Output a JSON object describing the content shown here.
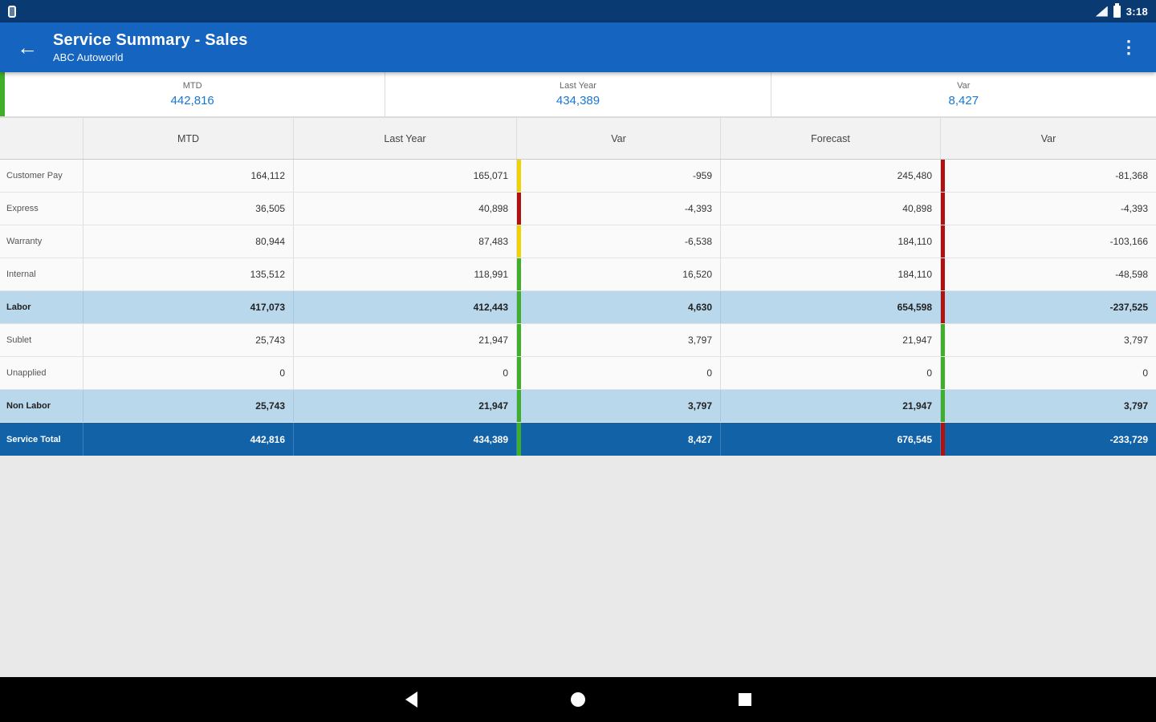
{
  "colors": {
    "app_bar_blue": "#1565c0",
    "status_bar_blue": "#0a3a72",
    "value_blue": "#1976d2",
    "positive_green": "#3fae2a",
    "warning_yellow": "#eed202",
    "negative_red": "#b01111",
    "subtotal_row_blue": "#b9d8ec",
    "total_row_blue": "#1262a8"
  },
  "status_bar": {
    "time": "3:18"
  },
  "app_bar": {
    "title": "Service Summary - Sales",
    "subtitle": "ABC Autoworld",
    "back_icon": "←",
    "overflow_icon": "⋮"
  },
  "summary": {
    "items": [
      {
        "label": "MTD",
        "value": "442,816"
      },
      {
        "label": "Last Year",
        "value": "434,389"
      },
      {
        "label": "Var",
        "value": "8,427"
      }
    ]
  },
  "table": {
    "columns": [
      "MTD",
      "Last Year",
      "Var",
      "Forecast",
      "Var"
    ],
    "rows": [
      {
        "label": "Customer Pay",
        "values": [
          "164,112",
          "165,071",
          "-959",
          "245,480",
          "-81,368"
        ],
        "var1_color": "yellow",
        "var2_color": "red",
        "style": "normal"
      },
      {
        "label": "Express",
        "values": [
          "36,505",
          "40,898",
          "-4,393",
          "40,898",
          "-4,393"
        ],
        "var1_color": "red",
        "var2_color": "red",
        "style": "normal"
      },
      {
        "label": "Warranty",
        "values": [
          "80,944",
          "87,483",
          "-6,538",
          "184,110",
          "-103,166"
        ],
        "var1_color": "yellow",
        "var2_color": "red",
        "style": "normal"
      },
      {
        "label": "Internal",
        "values": [
          "135,512",
          "118,991",
          "16,520",
          "184,110",
          "-48,598"
        ],
        "var1_color": "green",
        "var2_color": "red",
        "style": "normal"
      },
      {
        "label": "Labor",
        "values": [
          "417,073",
          "412,443",
          "4,630",
          "654,598",
          "-237,525"
        ],
        "var1_color": "green",
        "var2_color": "red",
        "style": "subtotal"
      },
      {
        "label": "Sublet",
        "values": [
          "25,743",
          "21,947",
          "3,797",
          "21,947",
          "3,797"
        ],
        "var1_color": "green",
        "var2_color": "green",
        "style": "normal"
      },
      {
        "label": "Unapplied",
        "values": [
          "0",
          "0",
          "0",
          "0",
          "0"
        ],
        "var1_color": "green",
        "var2_color": "green",
        "style": "normal"
      },
      {
        "label": "Non Labor",
        "values": [
          "25,743",
          "21,947",
          "3,797",
          "21,947",
          "3,797"
        ],
        "var1_color": "green",
        "var2_color": "green",
        "style": "subtotal"
      },
      {
        "label": "Service Total",
        "values": [
          "442,816",
          "434,389",
          "8,427",
          "676,545",
          "-233,729"
        ],
        "var1_color": "green",
        "var2_color": "red",
        "style": "total"
      }
    ]
  }
}
